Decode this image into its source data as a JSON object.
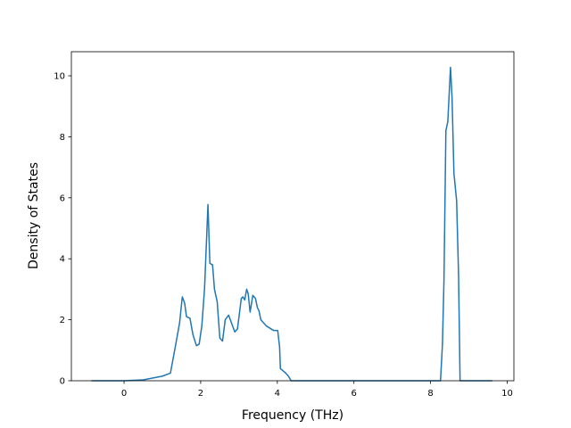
{
  "chart_data": {
    "type": "line",
    "xlabel": "Frequency (THz)",
    "ylabel": "Density of States",
    "xlim": [
      -1.375,
      10.175
    ],
    "ylim": [
      0,
      10.79
    ],
    "xticks": [
      0,
      2,
      4,
      6,
      8,
      10
    ],
    "yticks": [
      0,
      2,
      4,
      6,
      8,
      10
    ],
    "grid": false,
    "series": [
      {
        "name": null,
        "color": "#1f77b4",
        "x": [
          -0.85,
          0.0,
          0.5,
          1.0,
          1.21,
          1.35,
          1.45,
          1.52,
          1.58,
          1.63,
          1.72,
          1.8,
          1.89,
          1.96,
          2.03,
          2.1,
          2.19,
          2.24,
          2.31,
          2.36,
          2.43,
          2.5,
          2.57,
          2.64,
          2.73,
          2.89,
          2.96,
          3.06,
          3.1,
          3.15,
          3.2,
          3.24,
          3.29,
          3.36,
          3.43,
          3.48,
          3.52,
          3.57,
          3.71,
          3.9,
          4.01,
          4.06,
          4.08,
          4.22,
          4.29,
          4.36,
          8.26,
          8.31,
          8.35,
          8.4,
          8.45,
          8.52,
          8.56,
          8.61,
          8.68,
          8.73,
          8.77,
          9.61
        ],
        "values": [
          0,
          0,
          0.03,
          0.15,
          0.25,
          1.2,
          1.9,
          2.75,
          2.55,
          2.1,
          2.05,
          1.5,
          1.15,
          1.2,
          1.8,
          3.0,
          5.78,
          3.85,
          3.8,
          3.0,
          2.6,
          1.4,
          1.3,
          2.0,
          2.15,
          1.6,
          1.7,
          2.7,
          2.75,
          2.65,
          3.0,
          2.85,
          2.25,
          2.8,
          2.7,
          2.4,
          2.3,
          2.0,
          1.8,
          1.65,
          1.65,
          1.1,
          0.4,
          0.25,
          0.15,
          0,
          0,
          1.2,
          3.3,
          8.2,
          8.5,
          10.28,
          9.3,
          6.8,
          5.9,
          3.5,
          0,
          0
        ]
      }
    ]
  }
}
